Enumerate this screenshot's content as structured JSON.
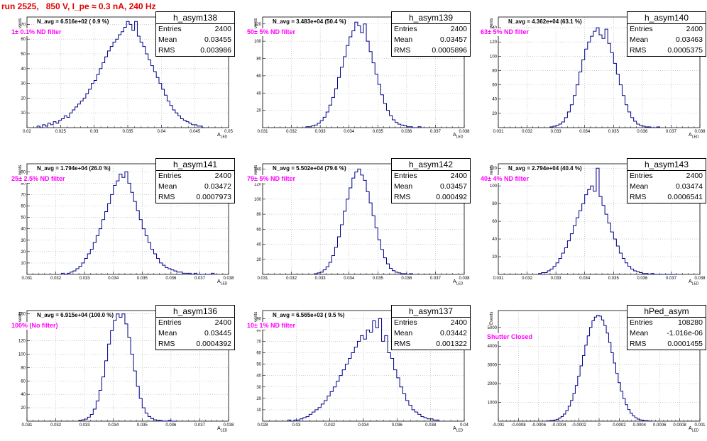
{
  "run_title": "run 2525,   850 V, I_pe ≈ 0.3 nA, 240 Hz",
  "colors": {
    "title": "#e10000",
    "filter_text": "#ff00ff",
    "histogram_line": "#00008b",
    "grid": "#b0b0b0"
  },
  "chart_data": [
    {
      "type": "histogram",
      "name": "h_asym138",
      "n_avg_label": "N_avg = 6.516e+02 ( 0.9 %)",
      "filter_label": "1± 0.1% ND filter",
      "stats": {
        "entries_label": "Entries",
        "entries": "2400",
        "mean_label": "Mean",
        "mean": "0.03455",
        "rms_label": "RMS",
        "rms": "0.003986"
      },
      "ylabel": "Events",
      "xlabel": "A",
      "xlabel_sub": "LED",
      "xlim": [
        0.02,
        0.05
      ],
      "ylim": [
        0,
        75
      ],
      "xticks": [
        0.02,
        0.025,
        0.03,
        0.035,
        0.04,
        0.045,
        0.05
      ],
      "xtick_labels": [
        "0.02",
        "0.025",
        "0.03",
        "0.035",
        "0.04",
        "0.045",
        "0.05"
      ],
      "yticks": [
        10,
        20,
        30,
        40,
        50,
        60,
        70
      ],
      "ytick_labels": [
        "10",
        "20",
        "30",
        "40",
        "50",
        "60",
        "70"
      ],
      "bin_range": [
        0.0215,
        0.0465
      ],
      "counts": [
        1,
        0,
        2,
        1,
        3,
        2,
        4,
        3,
        5,
        6,
        8,
        7,
        10,
        12,
        14,
        16,
        18,
        20,
        23,
        26,
        30,
        32,
        36,
        40,
        44,
        48,
        52,
        55,
        58,
        60,
        63,
        65,
        68,
        72,
        70,
        66,
        72,
        62,
        58,
        55,
        50,
        46,
        42,
        38,
        34,
        30,
        26,
        22,
        18,
        15,
        12,
        10,
        8,
        6,
        5,
        4,
        3,
        2,
        2,
        1,
        1,
        0
      ]
    },
    {
      "type": "histogram",
      "name": "h_asym139",
      "n_avg_label": "N_avg = 3.483e+04 (50.4 %)",
      "filter_label": "50± 5% ND filter",
      "stats": {
        "entries_label": "Entries",
        "entries": "2400",
        "mean_label": "Mean",
        "mean": "0.03457",
        "rms_label": "RMS",
        "rms": "0.0005896"
      },
      "ylabel": "Events",
      "xlabel": "A",
      "xlabel_sub": "LED",
      "xlim": [
        0.031,
        0.038
      ],
      "ylim": [
        0,
        128
      ],
      "xticks": [
        0.031,
        0.032,
        0.033,
        0.034,
        0.035,
        0.036,
        0.037,
        0.038
      ],
      "xtick_labels": [
        "0.031",
        "0.032",
        "0.033",
        "0.034",
        "0.035",
        "0.036",
        "0.037",
        "0.038"
      ],
      "yticks": [
        20,
        40,
        60,
        80,
        100,
        120
      ],
      "ytick_labels": [
        "20",
        "40",
        "60",
        "80",
        "100",
        "120"
      ],
      "bin_range": [
        0.0325,
        0.0365
      ],
      "counts": [
        1,
        1,
        2,
        3,
        5,
        8,
        12,
        18,
        26,
        35,
        45,
        58,
        70,
        82,
        95,
        105,
        112,
        122,
        118,
        110,
        120,
        100,
        88,
        75,
        62,
        50,
        38,
        28,
        20,
        14,
        9,
        6,
        4,
        3,
        2,
        1,
        1,
        0,
        0,
        1
      ]
    },
    {
      "type": "histogram",
      "name": "h_asym140",
      "n_avg_label": "N_avg = 4.362e+04 (63.1 %)",
      "filter_label": "63± 5% ND filter",
      "stats": {
        "entries_label": "Entries",
        "entries": "2400",
        "mean_label": "Mean",
        "mean": "0.03463",
        "rms_label": "RMS",
        "rms": "0.0005375"
      },
      "ylabel": "Events",
      "xlabel": "A",
      "xlabel_sub": "LED",
      "xlim": [
        0.031,
        0.038
      ],
      "ylim": [
        0,
        155
      ],
      "xticks": [
        0.031,
        0.032,
        0.033,
        0.034,
        0.035,
        0.036,
        0.037,
        0.038
      ],
      "xtick_labels": [
        "0.031",
        "0.032",
        "0.033",
        "0.034",
        "0.035",
        "0.036",
        "0.037",
        "0.038"
      ],
      "yticks": [
        20,
        40,
        60,
        80,
        100,
        120,
        140
      ],
      "ytick_labels": [
        "20",
        "40",
        "60",
        "80",
        "100",
        "120",
        "140"
      ],
      "bin_range": [
        0.0328,
        0.0366
      ],
      "counts": [
        1,
        2,
        3,
        5,
        8,
        14,
        22,
        32,
        45,
        60,
        78,
        95,
        110,
        120,
        128,
        135,
        140,
        130,
        125,
        138,
        118,
        105,
        90,
        75,
        60,
        45,
        32,
        22,
        14,
        9,
        5,
        3,
        2,
        1,
        1,
        0,
        0,
        1
      ]
    },
    {
      "type": "histogram",
      "name": "h_asym141",
      "n_avg_label": "N_avg = 1.794e+04 (26.0 %)",
      "filter_label": "25± 2.5% ND filter",
      "stats": {
        "entries_label": "Entries",
        "entries": "2400",
        "mean_label": "Mean",
        "mean": "0.03472",
        "rms_label": "RMS",
        "rms": "0.0007973"
      },
      "ylabel": "Events",
      "xlabel": "A",
      "xlabel_sub": "LED",
      "xlim": [
        0.031,
        0.038
      ],
      "ylim": [
        0,
        97
      ],
      "xticks": [
        0.031,
        0.032,
        0.033,
        0.034,
        0.035,
        0.036,
        0.037,
        0.038
      ],
      "xtick_labels": [
        "0.031",
        "0.032",
        "0.033",
        "0.034",
        "0.035",
        "0.036",
        "0.037",
        "0.038"
      ],
      "yticks": [
        10,
        20,
        30,
        40,
        50,
        60,
        70,
        80,
        90
      ],
      "ytick_labels": [
        "10",
        "20",
        "30",
        "40",
        "50",
        "60",
        "70",
        "80",
        "90"
      ],
      "bin_range": [
        0.0322,
        0.0375
      ],
      "counts": [
        1,
        0,
        1,
        2,
        3,
        5,
        7,
        10,
        14,
        18,
        22,
        28,
        34,
        40,
        48,
        55,
        62,
        70,
        78,
        82,
        88,
        85,
        90,
        80,
        72,
        64,
        56,
        48,
        40,
        34,
        28,
        22,
        18,
        14,
        10,
        8,
        6,
        5,
        4,
        3,
        2,
        2,
        1,
        1,
        1,
        0,
        1,
        0,
        0,
        0,
        0,
        0,
        1
      ]
    },
    {
      "type": "histogram",
      "name": "h_asym142",
      "n_avg_label": "N_avg = 5.502e+04 (79.6 %)",
      "filter_label": "79± 5% ND filter",
      "stats": {
        "entries_label": "Entries",
        "entries": "2400",
        "mean_label": "Mean",
        "mean": "0.03457",
        "rms_label": "RMS",
        "rms": "0.000492"
      },
      "ylabel": "Events",
      "xlabel": "A",
      "xlabel_sub": "LED",
      "xlim": [
        0.031,
        0.038
      ],
      "ylim": [
        0,
        147
      ],
      "xticks": [
        0.031,
        0.032,
        0.033,
        0.034,
        0.035,
        0.036,
        0.037,
        0.038
      ],
      "xtick_labels": [
        "0.031",
        "0.032",
        "0.033",
        "0.034",
        "0.035",
        "0.036",
        "0.037",
        "0.038"
      ],
      "yticks": [
        20,
        40,
        60,
        80,
        100,
        120,
        140
      ],
      "ytick_labels": [
        "20",
        "40",
        "60",
        "80",
        "100",
        "120",
        "140"
      ],
      "bin_range": [
        0.0328,
        0.0362
      ],
      "counts": [
        1,
        2,
        3,
        6,
        10,
        16,
        25,
        36,
        50,
        66,
        84,
        100,
        115,
        128,
        136,
        140,
        132,
        125,
        110,
        95,
        78,
        62,
        46,
        33,
        22,
        14,
        8,
        5,
        3,
        2,
        1,
        1,
        0,
        1
      ]
    },
    {
      "type": "histogram",
      "name": "h_asym143",
      "n_avg_label": "N_avg = 2.794e+04 (40.4 %)",
      "filter_label": "40± 4% ND filter",
      "stats": {
        "entries_label": "Entries",
        "entries": "2400",
        "mean_label": "Mean",
        "mean": "0.03474",
        "rms_label": "RMS",
        "rms": "0.0006541"
      },
      "ylabel": "Events",
      "xlabel": "A",
      "xlabel_sub": "LED",
      "xlim": [
        0.031,
        0.038
      ],
      "ylim": [
        0,
        125
      ],
      "xticks": [
        0.031,
        0.032,
        0.033,
        0.034,
        0.035,
        0.036,
        0.037,
        0.038
      ],
      "xtick_labels": [
        "0.031",
        "0.032",
        "0.033",
        "0.034",
        "0.035",
        "0.036",
        "0.037",
        "0.038"
      ],
      "yticks": [
        20,
        40,
        60,
        80,
        100,
        120
      ],
      "ytick_labels": [
        "20",
        "40",
        "60",
        "80",
        "100",
        "120"
      ],
      "bin_range": [
        0.0324,
        0.0372
      ],
      "counts": [
        1,
        2,
        2,
        4,
        6,
        9,
        13,
        18,
        24,
        30,
        38,
        46,
        55,
        64,
        72,
        80,
        90,
        96,
        100,
        94,
        120,
        88,
        78,
        68,
        58,
        48,
        40,
        32,
        24,
        18,
        13,
        9,
        6,
        4,
        3,
        2,
        1,
        1,
        0,
        1,
        0,
        0,
        0,
        0,
        0,
        0,
        0,
        0
      ]
    },
    {
      "type": "histogram",
      "name": "h_asym136",
      "n_avg_label": "N_avg = 6.915e+04 (100.0 %)",
      "filter_label": "100% (No filter)",
      "stats": {
        "entries_label": "Entries",
        "entries": "2400",
        "mean_label": "Mean",
        "mean": "0.03445",
        "rms_label": "RMS",
        "rms": "0.0004392"
      },
      "ylabel": "Events",
      "xlabel": "A",
      "xlabel_sub": "LED",
      "xlim": [
        0.031,
        0.038
      ],
      "ylim": [
        0,
        165
      ],
      "xticks": [
        0.031,
        0.032,
        0.033,
        0.034,
        0.035,
        0.036,
        0.037,
        0.038
      ],
      "xtick_labels": [
        "0.031",
        "0.032",
        "0.033",
        "0.034",
        "0.035",
        "0.036",
        "0.037",
        "0.038"
      ],
      "yticks": [
        20,
        40,
        60,
        80,
        100,
        120,
        140,
        160
      ],
      "ytick_labels": [
        "20",
        "40",
        "60",
        "80",
        "100",
        "120",
        "140",
        "160"
      ],
      "bin_range": [
        0.0328,
        0.0362
      ],
      "counts": [
        1,
        2,
        3,
        6,
        10,
        18,
        30,
        46,
        66,
        90,
        115,
        135,
        150,
        160,
        155,
        160,
        145,
        125,
        100,
        75,
        52,
        34,
        20,
        12,
        7,
        4,
        2,
        1,
        1,
        0,
        0,
        1,
        0,
        0
      ]
    },
    {
      "type": "histogram",
      "name": "h_asym137",
      "n_avg_label": "N_avg = 6.565e+03 ( 9.5 %)",
      "filter_label": "10± 1% ND filter",
      "stats": {
        "entries_label": "Entries",
        "entries": "2400",
        "mean_label": "Mean",
        "mean": "0.03442",
        "rms_label": "RMS",
        "rms": "0.001322"
      },
      "ylabel": "Events",
      "xlabel": "A",
      "xlabel_sub": "LED",
      "xlim": [
        0.028,
        0.04
      ],
      "ylim": [
        0,
        97
      ],
      "xticks": [
        0.028,
        0.03,
        0.032,
        0.034,
        0.036,
        0.038,
        0.04
      ],
      "xtick_labels": [
        "0.028",
        "0.03",
        "0.032",
        "0.034",
        "0.036",
        "0.038",
        "0.04"
      ],
      "yticks": [
        10,
        20,
        30,
        40,
        50,
        60,
        70,
        80,
        90
      ],
      "ytick_labels": [
        "10",
        "20",
        "30",
        "40",
        "50",
        "60",
        "70",
        "80",
        "90"
      ],
      "bin_range": [
        0.0295,
        0.0385
      ],
      "counts": [
        1,
        0,
        1,
        1,
        2,
        3,
        4,
        6,
        8,
        10,
        12,
        15,
        18,
        22,
        26,
        30,
        35,
        40,
        45,
        50,
        55,
        60,
        65,
        70,
        75,
        72,
        80,
        78,
        88,
        82,
        90,
        70,
        75,
        60,
        55,
        45,
        38,
        30,
        24,
        18,
        14,
        10,
        8,
        6,
        4,
        3,
        2,
        2,
        1,
        1
      ]
    },
    {
      "type": "histogram",
      "name": "hPed_asym",
      "n_avg_label": "",
      "filter_label": "Shutter Closed",
      "stats": {
        "entries_label": "Entries",
        "entries": "108280",
        "mean_label": "Mean",
        "mean": "-1.016e-06",
        "rms_label": "RMS",
        "rms": "0.0001455"
      },
      "ylabel": "Events",
      "xlabel": "A",
      "xlabel_sub": "LED",
      "xlim": [
        -0.001,
        0.001
      ],
      "ylim": [
        0,
        5900
      ],
      "xticks": [
        -0.001,
        -0.0008,
        -0.0006,
        -0.0004,
        -0.0002,
        0,
        0.0002,
        0.0004,
        0.0006,
        0.0008,
        0.001
      ],
      "xtick_labels": [
        "-0.001",
        "-0.0008",
        "-0.0006",
        "-0.0004",
        "-0.0002",
        "0",
        "0.0002",
        "0.0004",
        "0.0006",
        "0.0008",
        "0.001"
      ],
      "yticks": [
        1000,
        2000,
        3000,
        4000,
        5000
      ],
      "ytick_labels": [
        "1000",
        "2000",
        "3000",
        "4000",
        "5000"
      ],
      "bin_range": [
        -0.00052,
        0.00052
      ],
      "counts": [
        10,
        20,
        35,
        60,
        100,
        160,
        250,
        380,
        560,
        800,
        1100,
        1480,
        1900,
        2400,
        2950,
        3500,
        4050,
        4550,
        5000,
        5350,
        5550,
        5650,
        5600,
        5400,
        5100,
        4700,
        4200,
        3650,
        3100,
        2550,
        2050,
        1600,
        1200,
        880,
        620,
        420,
        280,
        180,
        110,
        65,
        38,
        22,
        12,
        6
      ]
    }
  ]
}
